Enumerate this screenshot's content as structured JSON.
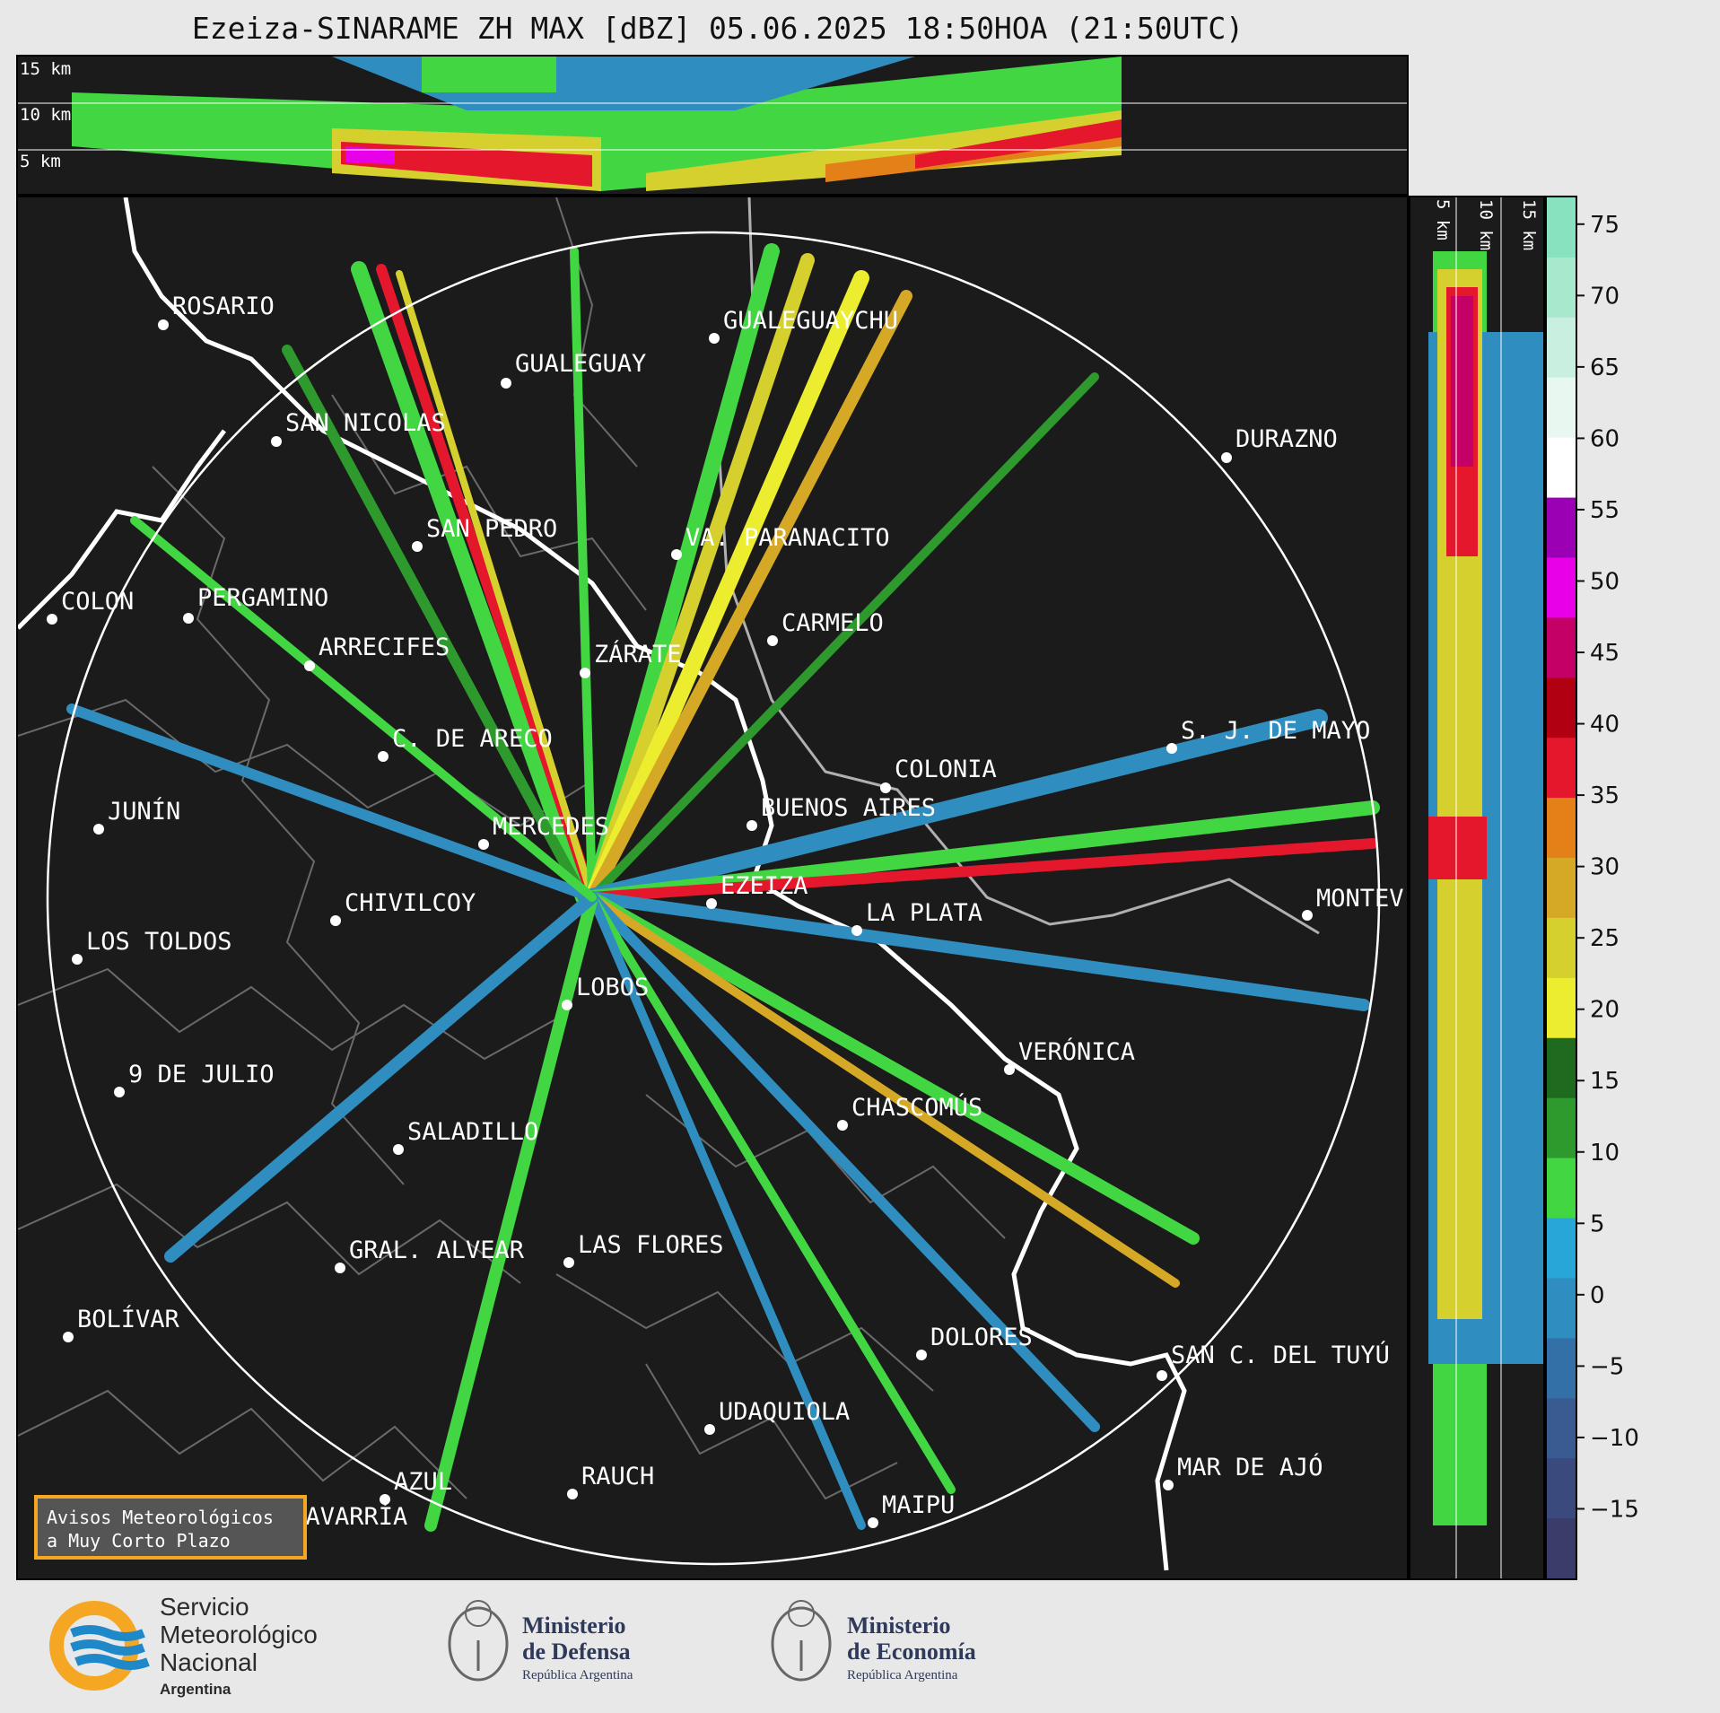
{
  "title": "Ezeiza-SINARAME ZH MAX [dBZ] 05.06.2025 18:50HOA (21:50UTC)",
  "top_panel": {
    "labels": [
      "15 km",
      "10 km",
      "5 km"
    ]
  },
  "side_panel": {
    "labels": [
      "5 km",
      "10 km",
      "15 km"
    ]
  },
  "colorbar": {
    "unit": "dBZ",
    "ticks": [
      "75",
      "70",
      "65",
      "60",
      "55",
      "50",
      "45",
      "40",
      "35",
      "30",
      "25",
      "20",
      "15",
      "10",
      "5",
      "0",
      "−5",
      "−10",
      "−15"
    ],
    "colors": [
      "#89e2bf",
      "#a8e8cd",
      "#c8efdf",
      "#e8f7f0",
      "#ffffff",
      "#9b00b5",
      "#e800e8",
      "#c40066",
      "#b00012",
      "#e4172c",
      "#e38018",
      "#d5a925",
      "#d6d02f",
      "#eded2f",
      "#1e6a1f",
      "#2e9a2e",
      "#42d642",
      "#27a7d8",
      "#2f8ebf",
      "#3470a8",
      "#3a5a92",
      "#3b4a7d",
      "#3a3d6a"
    ]
  },
  "places": [
    "ROSARIO",
    "GUALEGUAYCHU",
    "GUALEGUAY",
    "SAN NICOLAS",
    "DURAZNO",
    "SAN PEDRO",
    "VA. PARANACITO",
    "COLON",
    "PERGAMINO",
    "CARMELO",
    "ARRECIFES",
    "ZÁRATE",
    "S. J. DE MAYO",
    "C. DE ARECO",
    "COLONIA",
    "JUNÍN",
    "BUENOS AIRES",
    "MERCEDES",
    "EZEIZA",
    "MONTEV",
    "CHIVILCOY",
    "LA PLATA",
    "LOS TOLDOS",
    "LOBOS",
    "VERÓNICA",
    "9 DE JULIO",
    "CHASCOMÚS",
    "SALADILLO",
    "GRAL. ALVEAR",
    "LAS FLORES",
    "BOLÍVAR",
    "DOLORES",
    "SAN C. DEL TUYÚ",
    "UDAQUIOLA",
    "MAR DE AJÓ",
    "AZUL",
    "RAUCH",
    "OLAVARRÍA",
    "MAIPU"
  ],
  "notice": {
    "line1": "Avisos Meteorológicos",
    "line2": "a Muy Corto Plazo"
  },
  "logos": {
    "smn": [
      "Servicio",
      "Meteorológico",
      "Nacional",
      "Argentina"
    ],
    "defensa": [
      "Ministerio",
      "de Defensa",
      "República Argentina"
    ],
    "economia": [
      "Ministerio",
      "de Economía",
      "República Argentina"
    ]
  }
}
